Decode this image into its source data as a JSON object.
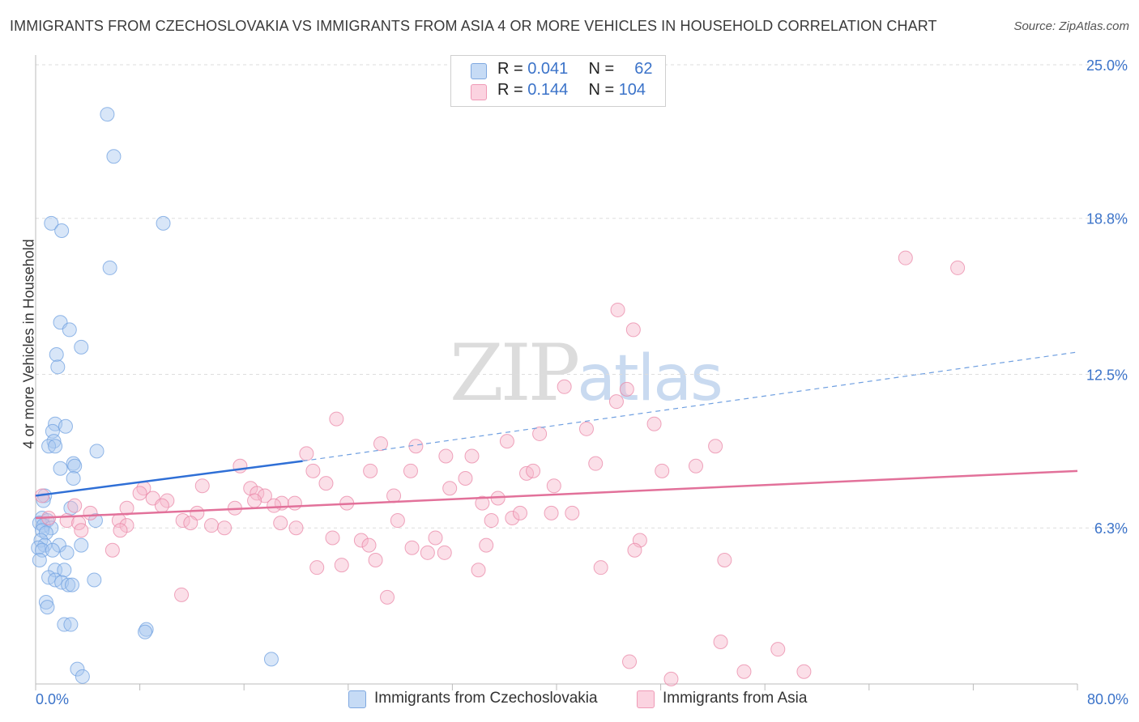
{
  "header": {
    "title": "IMMIGRANTS FROM CZECHOSLOVAKIA VS IMMIGRANTS FROM ASIA 4 OR MORE VEHICLES IN HOUSEHOLD CORRELATION CHART",
    "source": "Source: ZipAtlas.com"
  },
  "watermark": {
    "zip": "ZIP",
    "atlas": "atlas"
  },
  "legend": {
    "rows": [
      {
        "r_label": "R =",
        "r_value": "0.041",
        "n_label": "N =",
        "n_value": "62",
        "color": "#a9c8ef"
      },
      {
        "r_label": "R =",
        "r_value": "0.144",
        "n_label": "N =",
        "n_value": "104",
        "color": "#f6b8cb"
      }
    ]
  },
  "chart_data": {
    "type": "scatter",
    "title": "IMMIGRANTS FROM CZECHOSLOVAKIA VS IMMIGRANTS FROM ASIA 4 OR MORE VEHICLES IN HOUSEHOLD CORRELATION CHART",
    "xlabel": "",
    "ylabel": "4 or more Vehicles in Household",
    "xlim": [
      0,
      80
    ],
    "ylim": [
      0,
      25
    ],
    "x_tick_labels": [
      "0.0%",
      "80.0%"
    ],
    "y_ticks": [
      6.3,
      12.5,
      18.8,
      25.0
    ],
    "y_tick_labels": [
      "6.3%",
      "12.5%",
      "18.8%",
      "25.0%"
    ],
    "grid": true,
    "series": [
      {
        "name": "Immigrants from Czechoslovakia",
        "color": "#6fa0e0",
        "fill": "#a9c8ef",
        "trend": {
          "x0": 0,
          "y0": 7.6,
          "x1": 20.5,
          "y1": 9.0,
          "dash_to_x": 80,
          "dash_to_y": 13.4
        },
        "points": [
          [
            5.5,
            23.0
          ],
          [
            6.0,
            21.3
          ],
          [
            1.2,
            18.6
          ],
          [
            2.0,
            18.3
          ],
          [
            9.8,
            18.6
          ],
          [
            5.7,
            16.8
          ],
          [
            1.9,
            14.6
          ],
          [
            2.6,
            14.3
          ],
          [
            3.5,
            13.6
          ],
          [
            1.6,
            13.3
          ],
          [
            1.7,
            12.8
          ],
          [
            1.5,
            10.5
          ],
          [
            2.3,
            10.4
          ],
          [
            1.3,
            10.2
          ],
          [
            1.4,
            9.8
          ],
          [
            1.0,
            9.6
          ],
          [
            1.5,
            9.6
          ],
          [
            4.7,
            9.4
          ],
          [
            2.9,
            8.9
          ],
          [
            3.0,
            8.8
          ],
          [
            1.9,
            8.7
          ],
          [
            2.9,
            8.3
          ],
          [
            0.7,
            7.6
          ],
          [
            0.6,
            7.4
          ],
          [
            2.7,
            7.1
          ],
          [
            4.6,
            6.6
          ],
          [
            0.5,
            6.7
          ],
          [
            0.9,
            6.6
          ],
          [
            0.3,
            6.5
          ],
          [
            0.6,
            6.4
          ],
          [
            1.2,
            6.3
          ],
          [
            0.5,
            6.2
          ],
          [
            0.8,
            6.1
          ],
          [
            0.4,
            5.8
          ],
          [
            0.7,
            5.6
          ],
          [
            1.8,
            5.6
          ],
          [
            3.5,
            5.6
          ],
          [
            0.2,
            5.5
          ],
          [
            0.5,
            5.4
          ],
          [
            1.3,
            5.4
          ],
          [
            2.4,
            5.3
          ],
          [
            0.3,
            5.0
          ],
          [
            1.5,
            4.6
          ],
          [
            2.2,
            4.6
          ],
          [
            1.0,
            4.3
          ],
          [
            1.5,
            4.2
          ],
          [
            2.0,
            4.1
          ],
          [
            2.5,
            4.0
          ],
          [
            2.8,
            4.0
          ],
          [
            4.5,
            4.2
          ],
          [
            0.8,
            3.3
          ],
          [
            0.9,
            3.1
          ],
          [
            2.2,
            2.4
          ],
          [
            2.7,
            2.4
          ],
          [
            8.5,
            2.2
          ],
          [
            8.4,
            2.1
          ],
          [
            18.1,
            1.0
          ],
          [
            3.2,
            0.6
          ],
          [
            3.6,
            0.3
          ]
        ]
      },
      {
        "name": "Immigrants from Asia",
        "color": "#e987a7",
        "fill": "#f6b8cb",
        "trend": {
          "x0": 0,
          "y0": 6.7,
          "x1": 80,
          "y1": 8.6
        },
        "points": [
          [
            66.8,
            17.2
          ],
          [
            70.8,
            16.8
          ],
          [
            44.7,
            15.1
          ],
          [
            45.9,
            14.3
          ],
          [
            40.6,
            12.0
          ],
          [
            45.4,
            11.9
          ],
          [
            44.6,
            11.4
          ],
          [
            23.1,
            10.7
          ],
          [
            47.5,
            10.5
          ],
          [
            42.3,
            10.3
          ],
          [
            38.7,
            10.1
          ],
          [
            36.2,
            9.8
          ],
          [
            26.5,
            9.7
          ],
          [
            29.2,
            9.6
          ],
          [
            52.2,
            9.6
          ],
          [
            20.8,
            9.3
          ],
          [
            31.5,
            9.2
          ],
          [
            33.5,
            9.2
          ],
          [
            43.0,
            8.9
          ],
          [
            50.7,
            8.8
          ],
          [
            15.7,
            8.8
          ],
          [
            21.3,
            8.6
          ],
          [
            25.7,
            8.6
          ],
          [
            28.8,
            8.6
          ],
          [
            37.7,
            8.5
          ],
          [
            38.2,
            8.6
          ],
          [
            48.1,
            8.6
          ],
          [
            33.0,
            8.3
          ],
          [
            22.3,
            8.1
          ],
          [
            39.8,
            8.0
          ],
          [
            12.8,
            8.0
          ],
          [
            8.3,
            7.9
          ],
          [
            16.5,
            7.9
          ],
          [
            31.8,
            7.9
          ],
          [
            17.0,
            7.7
          ],
          [
            8.0,
            7.7
          ],
          [
            17.6,
            7.6
          ],
          [
            27.5,
            7.6
          ],
          [
            9.0,
            7.5
          ],
          [
            10.1,
            7.4
          ],
          [
            16.8,
            7.4
          ],
          [
            23.9,
            7.3
          ],
          [
            34.3,
            7.3
          ],
          [
            35.5,
            7.5
          ],
          [
            18.9,
            7.3
          ],
          [
            18.3,
            7.2
          ],
          [
            19.9,
            7.3
          ],
          [
            9.7,
            7.2
          ],
          [
            7.0,
            7.1
          ],
          [
            15.3,
            7.1
          ],
          [
            3.0,
            7.2
          ],
          [
            0.5,
            7.6
          ],
          [
            12.4,
            6.9
          ],
          [
            35.0,
            6.6
          ],
          [
            36.6,
            6.7
          ],
          [
            39.6,
            6.9
          ],
          [
            41.2,
            6.9
          ],
          [
            37.2,
            6.9
          ],
          [
            27.8,
            6.6
          ],
          [
            4.2,
            6.9
          ],
          [
            1.0,
            6.7
          ],
          [
            6.4,
            6.6
          ],
          [
            11.3,
            6.6
          ],
          [
            13.5,
            6.4
          ],
          [
            14.5,
            6.3
          ],
          [
            11.9,
            6.5
          ],
          [
            7.0,
            6.4
          ],
          [
            6.5,
            6.2
          ],
          [
            18.8,
            6.5
          ],
          [
            20.0,
            6.3
          ],
          [
            2.4,
            6.6
          ],
          [
            3.3,
            6.5
          ],
          [
            3.5,
            6.2
          ],
          [
            22.8,
            5.9
          ],
          [
            25.0,
            5.8
          ],
          [
            30.7,
            5.9
          ],
          [
            34.6,
            5.6
          ],
          [
            46.4,
            5.8
          ],
          [
            5.9,
            5.4
          ],
          [
            25.6,
            5.6
          ],
          [
            28.9,
            5.5
          ],
          [
            30.1,
            5.3
          ],
          [
            31.4,
            5.3
          ],
          [
            46.0,
            5.4
          ],
          [
            26.1,
            5.0
          ],
          [
            52.9,
            5.0
          ],
          [
            23.5,
            4.8
          ],
          [
            21.6,
            4.7
          ],
          [
            34.0,
            4.6
          ],
          [
            43.4,
            4.7
          ],
          [
            11.2,
            3.6
          ],
          [
            27.0,
            3.5
          ],
          [
            52.6,
            1.7
          ],
          [
            57.0,
            1.4
          ],
          [
            45.6,
            0.9
          ],
          [
            54.4,
            0.5
          ],
          [
            59.0,
            0.5
          ],
          [
            48.8,
            0.2
          ]
        ]
      }
    ]
  },
  "bottom_legend": [
    {
      "label": "Immigrants from Czechoslovakia",
      "color": "#a9c8ef"
    },
    {
      "label": "Immigrants from Asia",
      "color": "#f6b8cb"
    }
  ]
}
